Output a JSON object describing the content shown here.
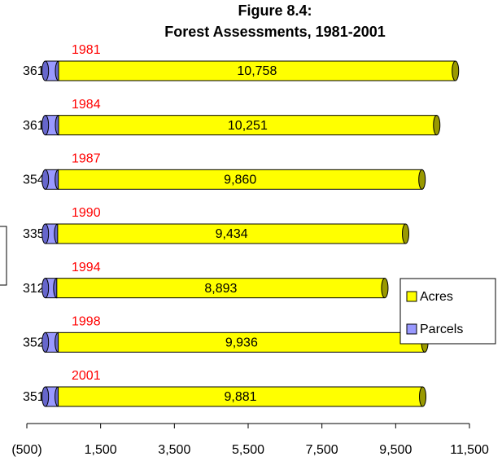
{
  "chart_data": {
    "type": "bar",
    "orientation": "horizontal",
    "stacked": true,
    "title": "Figure 8.4:",
    "subtitle": "Forest Assessments, 1981-2001",
    "categories": [
      "1981",
      "1984",
      "1987",
      "1990",
      "1994",
      "1998",
      "2001"
    ],
    "series": [
      {
        "name": "Parcels",
        "color": "#9999ff",
        "values": [
          361,
          361,
          354,
          335,
          312,
          352,
          351
        ]
      },
      {
        "name": "Acres",
        "color": "#ffff00",
        "values": [
          10758,
          10251,
          9860,
          9434,
          8893,
          9936,
          9881
        ],
        "value_labels": [
          "10,758",
          "10,251",
          "9,860",
          "9,434",
          "8,893",
          "9,936",
          "9,881"
        ]
      }
    ],
    "xlim": [
      -500,
      11500
    ],
    "xticks": [
      {
        "value": -500,
        "label": "(500)"
      },
      {
        "value": 1500,
        "label": "1,500"
      },
      {
        "value": 3500,
        "label": "3,500"
      },
      {
        "value": 5500,
        "label": "5,500"
      },
      {
        "value": 7500,
        "label": "7,500"
      },
      {
        "value": 9500,
        "label": "9,500"
      },
      {
        "value": 11500,
        "label": "11,500"
      }
    ],
    "legend": "right"
  }
}
